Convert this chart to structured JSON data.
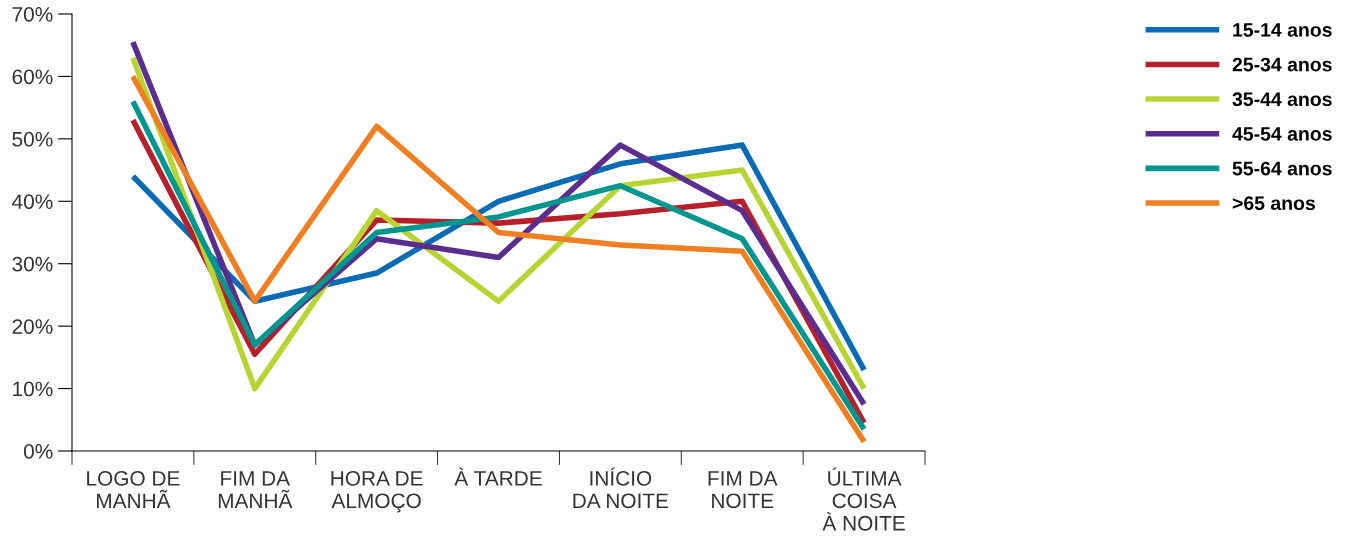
{
  "chart_data": {
    "type": "line",
    "categories": [
      "LOGO DE\nMANHÃ",
      "FIM DA\nMANHÃ",
      "HORA DE\nALMOÇO",
      "À TARDE",
      "INÍCIO\nDA NOITE",
      "FIM DA\nNOITE",
      "ÚLTIMA\nCOISA\nÀ NOITE"
    ],
    "series": [
      {
        "name": "15-14 anos",
        "color": "#0a6bb5",
        "values": [
          44,
          24,
          28.5,
          40,
          46,
          49,
          13
        ]
      },
      {
        "name": "25-34 anos",
        "color": "#b5202a",
        "values": [
          53,
          15.5,
          37,
          36.5,
          38,
          40,
          4.5
        ]
      },
      {
        "name": "35-44 anos",
        "color": "#b8d432",
        "values": [
          63,
          10,
          38.5,
          24,
          42.5,
          45,
          10
        ]
      },
      {
        "name": "45-54 anos",
        "color": "#5b2d8e",
        "values": [
          65.5,
          17,
          34,
          31,
          49,
          38.5,
          7.5
        ]
      },
      {
        "name": "55-64 anos",
        "color": "#00968f",
        "values": [
          56,
          17,
          35,
          37.5,
          42.5,
          34,
          3.5
        ]
      },
      {
        "name": ">65 anos",
        "color": "#f07f22",
        "values": [
          60,
          24,
          52,
          35,
          33,
          32,
          1.5
        ]
      }
    ],
    "ylim": [
      0,
      70
    ],
    "yticks": [
      {
        "value": 0,
        "label": "0%"
      },
      {
        "value": 10,
        "label": "10%"
      },
      {
        "value": 20,
        "label": "20%"
      },
      {
        "value": 30,
        "label": "30%"
      },
      {
        "value": 40,
        "label": "40%"
      },
      {
        "value": 50,
        "label": "50%"
      },
      {
        "value": 60,
        "label": "60%"
      },
      {
        "value": 70,
        "label": "70%"
      }
    ],
    "grid": false,
    "legend": "top right",
    "marker": "none",
    "line_style": "solid"
  }
}
